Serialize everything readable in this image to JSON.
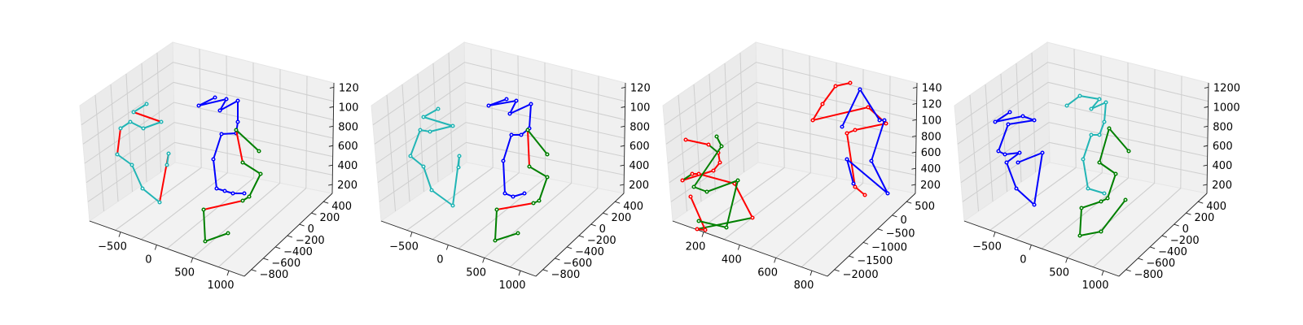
{
  "colors": {
    "red": "#ff0000",
    "green": "#008000",
    "blue": "#0000ff",
    "cyan": "#22b5b5"
  },
  "chart_data": [
    {
      "type": "3d-skeleton",
      "x_ticks": [
        "−500",
        "0",
        "500",
        "1000"
      ],
      "y_ticks": [
        "400",
        "200",
        "0",
        "−200",
        "−400",
        "−600",
        "−800"
      ],
      "z_ticks": [
        "120",
        "100",
        "800",
        "600",
        "400",
        "200"
      ],
      "grid": true,
      "skeletons": [
        {
          "color": "cyan",
          "alt_color": "red",
          "points": [
            [
              180,
              128
            ],
            [
              164,
              138
            ],
            [
              198,
              150
            ],
            [
              176,
              158
            ],
            [
              160,
              150
            ],
            [
              148,
              158
            ],
            [
              144,
              190
            ],
            [
              162,
              203
            ],
            [
              175,
              232
            ],
            [
              196,
              249
            ],
            [
              207,
              189
            ],
            [
              205,
              203
            ]
          ]
        },
        {
          "color": "blue",
          "points": [
            [
              264,
              120
            ],
            [
              244,
              130
            ],
            [
              278,
              122
            ],
            [
              270,
              136
            ],
            [
              292,
              124
            ],
            [
              292,
              150
            ],
            [
              290,
              164
            ],
            [
              272,
              165
            ],
            [
              262,
              196
            ],
            [
              266,
              232
            ],
            [
              276,
              235
            ],
            [
              286,
              238
            ],
            [
              300,
              238
            ]
          ]
        },
        {
          "color": "green",
          "alt_color": "red",
          "points": [
            [
              318,
              186
            ],
            [
              290,
              160
            ],
            [
              298,
              200
            ],
            [
              320,
              214
            ],
            [
              306,
              242
            ],
            [
              298,
              247
            ],
            [
              250,
              258
            ],
            [
              252,
              297
            ],
            [
              280,
              287
            ]
          ]
        }
      ]
    },
    {
      "type": "3d-skeleton",
      "x_ticks": [
        "−500",
        "0",
        "500",
        "1000"
      ],
      "y_ticks": [
        "400",
        "200",
        "0",
        "−200",
        "−400",
        "−600",
        "−800"
      ],
      "z_ticks": [
        "120",
        "100",
        "800",
        "600",
        "400",
        "200"
      ],
      "grid": true,
      "skeletons": [
        {
          "color": "cyan",
          "points": [
            [
              538,
              134
            ],
            [
              520,
              144
            ],
            [
              556,
              155
            ],
            [
              528,
              162
            ],
            [
              516,
              160
            ],
            [
              504,
              192
            ],
            [
              520,
              205
            ],
            [
              530,
              234
            ],
            [
              556,
              253
            ],
            [
              564,
              192
            ],
            [
              563,
              206
            ]
          ]
        },
        {
          "color": "blue",
          "points": [
            [
              622,
              122
            ],
            [
              600,
              130
            ],
            [
              634,
              124
            ],
            [
              626,
              140
            ],
            [
              652,
              128
            ],
            [
              650,
              158
            ],
            [
              640,
              166
            ],
            [
              628,
              166
            ],
            [
              618,
              198
            ],
            [
              620,
              238
            ],
            [
              630,
              242
            ],
            [
              644,
              238
            ]
          ]
        },
        {
          "color": "green",
          "alt_color": "red",
          "points": [
            [
              672,
              190
            ],
            [
              648,
              160
            ],
            [
              650,
              205
            ],
            [
              672,
              218
            ],
            [
              662,
              247
            ],
            [
              655,
              250
            ],
            [
              610,
              258
            ],
            [
              608,
              296
            ],
            [
              636,
              287
            ]
          ]
        }
      ]
    },
    {
      "type": "3d-skeleton",
      "x_ticks": [
        "200",
        "400",
        "600",
        "800"
      ],
      "y_ticks": [
        "500",
        "0",
        "−500",
        "−1000",
        "−1500",
        "−2000"
      ],
      "z_ticks": [
        "140",
        "120",
        "100",
        "800",
        "600",
        "400",
        "200"
      ],
      "grid": true,
      "skeletons": [
        {
          "color": "red",
          "points": [
            [
              1044,
              102
            ],
            [
              1026,
              106
            ],
            [
              1010,
              128
            ],
            [
              998,
              148
            ],
            [
              1066,
              132
            ],
            [
              1088,
              152
            ],
            [
              1050,
              160
            ],
            [
              1040,
              164
            ],
            [
              1050,
              230
            ],
            [
              1062,
              240
            ]
          ]
        },
        {
          "color": "blue",
          "points": [
            [
              1034,
              156
            ],
            [
              1056,
              110
            ],
            [
              1080,
              148
            ],
            [
              1086,
              148
            ],
            [
              1070,
              198
            ],
            [
              1090,
              238
            ],
            [
              1040,
              196
            ],
            [
              1048,
              226
            ]
          ]
        },
        {
          "color": "red",
          "alt_color": "green",
          "points": [
            [
              842,
              172
            ],
            [
              870,
              178
            ],
            [
              882,
              188
            ],
            [
              884,
              200
            ],
            [
              876,
              210
            ],
            [
              838,
              222
            ],
            [
              850,
              214
            ],
            [
              858,
              214
            ],
            [
              902,
              226
            ],
            [
              924,
              268
            ],
            [
              856,
              282
            ],
            [
              866,
              283
            ],
            [
              848,
              242
            ]
          ]
        },
        {
          "color": "green",
          "points": [
            [
              880,
              168
            ],
            [
              886,
              180
            ],
            [
              852,
              230
            ],
            [
              868,
              236
            ],
            [
              906,
              222
            ],
            [
              892,
              280
            ],
            [
              858,
              272
            ]
          ]
        }
      ]
    },
    {
      "type": "3d-skeleton",
      "x_ticks": [
        "−500",
        "0",
        "500",
        "1000"
      ],
      "y_ticks": [
        "400",
        "200",
        "0",
        "−200",
        "−400",
        "−600",
        "−800"
      ],
      "z_ticks": [
        "1200",
        "1000",
        "800",
        "600",
        "400",
        "200"
      ],
      "grid": true,
      "skeletons": [
        {
          "color": "blue",
          "points": [
            [
              1240,
              138
            ],
            [
              1222,
              150
            ],
            [
              1256,
              143
            ],
            [
              1270,
              148
            ],
            [
              1238,
              153
            ],
            [
              1226,
              186
            ],
            [
              1234,
              190
            ],
            [
              1252,
              188
            ],
            [
              1236,
              200
            ],
            [
              1248,
              232
            ],
            [
              1270,
              252
            ],
            [
              1280,
              188
            ],
            [
              1250,
              200
            ]
          ]
        },
        {
          "color": "cyan",
          "points": [
            [
              1310,
              130
            ],
            [
              1326,
              118
            ],
            [
              1350,
              122
            ],
            [
              1340,
              134
            ],
            [
              1358,
              126
            ],
            [
              1356,
              150
            ],
            [
              1350,
              166
            ],
            [
              1340,
              166
            ],
            [
              1330,
              196
            ],
            [
              1336,
              232
            ],
            [
              1356,
              238
            ]
          ]
        },
        {
          "color": "green",
          "points": [
            [
              1386,
              186
            ],
            [
              1362,
              158
            ],
            [
              1350,
              200
            ],
            [
              1370,
              214
            ],
            [
              1360,
              244
            ],
            [
              1352,
              248
            ],
            [
              1328,
              256
            ],
            [
              1326,
              290
            ],
            [
              1352,
              285
            ],
            [
              1382,
              246
            ]
          ]
        }
      ]
    }
  ]
}
